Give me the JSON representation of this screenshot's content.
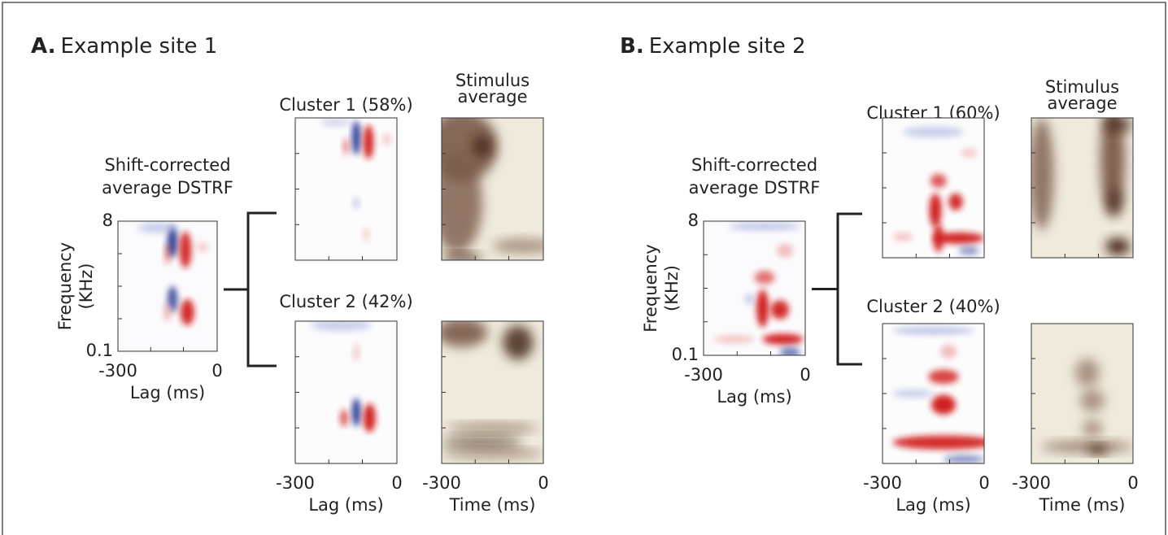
{
  "panels": [
    {
      "label": "A.",
      "title": "Example site 1",
      "average": {
        "title": [
          "Shift-corrected",
          "average DSTRF"
        ],
        "y_label": [
          "Frequency",
          "(KHz)"
        ],
        "y_ticks": [
          "8",
          "0.1"
        ],
        "x_ticks": [
          "-300",
          "0"
        ],
        "x_label": "Lag (ms)"
      },
      "clusters": [
        {
          "title": "Cluster 1 (58%)"
        },
        {
          "title": "Cluster 2 (42%)"
        }
      ],
      "stimulus_title": [
        "Stimulus",
        "average"
      ],
      "cluster_x_ticks": [
        "-300",
        "0"
      ],
      "cluster_x_label": "Lag (ms)",
      "stimulus_x_ticks": [
        "-300",
        "0"
      ],
      "stimulus_x_label": "Time (ms)"
    },
    {
      "label": "B.",
      "title": "Example site 2",
      "average": {
        "title": [
          "Shift-corrected",
          "average DSTRF"
        ],
        "y_label": [
          "Frequency",
          "(KHz)"
        ],
        "y_ticks": [
          "8",
          "0.1"
        ],
        "x_ticks": [
          "-300",
          "0"
        ],
        "x_label": "Lag (ms)"
      },
      "clusters": [
        {
          "title": "Cluster 1 (60%)"
        },
        {
          "title": "Cluster 2 (40%)"
        }
      ],
      "stimulus_title": [
        "Stimulus",
        "average"
      ],
      "cluster_x_ticks": [
        "-300",
        "0"
      ],
      "cluster_x_label": "Lag (ms)",
      "stimulus_x_ticks": [
        "-300",
        "0"
      ],
      "stimulus_x_label": "Time (ms)"
    }
  ]
}
